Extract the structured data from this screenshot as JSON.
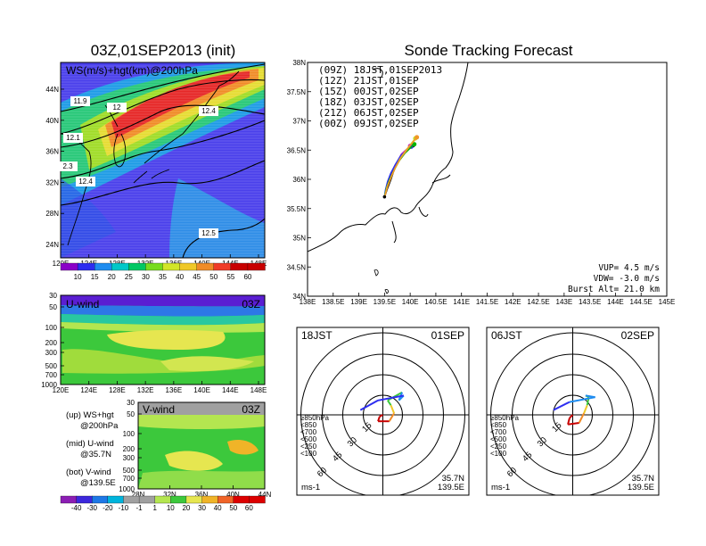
{
  "left_title": "03Z,01SEP2013 (init)",
  "right_title": "Sonde Tracking Forecast",
  "colors": {
    "c0": "#8b00c8",
    "c1": "#2d2df0",
    "c2": "#1e8cf0",
    "c3": "#00c8c8",
    "c4": "#00c864",
    "c5": "#78dc1e",
    "c6": "#d2e628",
    "c7": "#f0c828",
    "c8": "#f08c28",
    "c9": "#f03c28",
    "c10": "#c80000",
    "n0": "#8c1eb4",
    "n1": "#3c28dc",
    "n2": "#1e78e6",
    "n3": "#00b4dc",
    "n4": "#a0a0a0",
    "n5": "#b4e650",
    "n6": "#3cc83c",
    "n7": "#e6e650",
    "n8": "#f0b428",
    "n9": "#f06428",
    "n10": "#dc0000"
  },
  "chart_data": [
    {
      "type": "heatmap",
      "name_printed": "WS(m/s)+hgt(km)@200hPa",
      "x_ticks": [
        "120E",
        "124E",
        "128E",
        "132E",
        "136E",
        "140E",
        "144E",
        "148E"
      ],
      "y_ticks": [
        "24N",
        "28N",
        "32N",
        "36N",
        "40N",
        "44N"
      ],
      "contour_labels": [
        "11.9",
        "12",
        "12.4",
        "12.1",
        "2.3",
        "12.4",
        "12.5"
      ],
      "colorbar_ticks": [
        "10",
        "15",
        "20",
        "25",
        "30",
        "35",
        "40",
        "45",
        "50",
        "55",
        "60"
      ]
    },
    {
      "type": "heatmap",
      "name_printed": "U-wind",
      "time_label": "03Z",
      "x_ticks": [
        "120E",
        "124E",
        "128E",
        "132E",
        "136E",
        "140E",
        "144E",
        "148E"
      ],
      "y_ticks": [
        "30",
        "50",
        "100",
        "200",
        "300",
        "500",
        "700",
        "1000"
      ]
    },
    {
      "type": "heatmap",
      "name_printed": "V-wind",
      "time_label": "03Z",
      "x_ticks": [
        "28N",
        "32N",
        "36N",
        "40N",
        "44N"
      ],
      "y_ticks": [
        "30",
        "50",
        "100",
        "200",
        "300",
        "500",
        "700",
        "1000"
      ],
      "colorbar_ticks": [
        "-40",
        "-30",
        "-20",
        "-10",
        "-1",
        "1",
        "10",
        "20",
        "30",
        "40",
        "50",
        "60"
      ]
    },
    {
      "type": "line",
      "x_ticks": [
        "138E",
        "138.5E",
        "139E",
        "139.5E",
        "140E",
        "140.5E",
        "141E",
        "141.5E",
        "142E",
        "142.5E",
        "143E",
        "143.5E",
        "144E",
        "144.5E",
        "145E"
      ],
      "y_ticks": [
        "34N",
        "34.5N",
        "35N",
        "35.5N",
        "36N",
        "36.5N",
        "37N",
        "37.5N",
        "38N"
      ],
      "xlim": [
        138,
        145
      ],
      "ylim": [
        34,
        38
      ],
      "launch": {
        "lon": 139.5,
        "lat": 35.7
      },
      "series": [
        {
          "name": "(09Z)  18JST,01SEP2013",
          "color": "#000000",
          "track": [
            [
              139.51,
              35.72
            ],
            [
              139.56,
              35.85
            ],
            [
              139.62,
              35.99
            ],
            [
              139.68,
              36.14
            ],
            [
              139.76,
              36.3
            ],
            [
              139.86,
              36.45
            ],
            [
              140.05,
              36.58
            ]
          ]
        },
        {
          "name": "(12Z)  21JST,01SEP",
          "color": "#c800c8",
          "track": [
            [
              139.5,
              35.71
            ],
            [
              139.53,
              35.83
            ],
            [
              139.58,
              35.98
            ],
            [
              139.64,
              36.12
            ],
            [
              139.73,
              36.27
            ],
            [
              139.83,
              36.43
            ],
            [
              140.0,
              36.57
            ]
          ]
        },
        {
          "name": "(15Z)  00JST,02SEP",
          "color": "#2d2df0",
          "track": [
            [
              139.5,
              35.71
            ],
            [
              139.52,
              35.82
            ],
            [
              139.56,
              35.96
            ],
            [
              139.62,
              36.1
            ],
            [
              139.71,
              36.25
            ],
            [
              139.82,
              36.41
            ],
            [
              140.02,
              36.56
            ]
          ]
        },
        {
          "name": "(18Z)  03JST,02SEP",
          "color": "#00b400",
          "track": [
            [
              139.5,
              35.71
            ],
            [
              139.54,
              35.86
            ],
            [
              139.6,
              36.0
            ],
            [
              139.68,
              36.15
            ],
            [
              139.78,
              36.31
            ],
            [
              139.9,
              36.45
            ],
            [
              140.08,
              36.6
            ]
          ]
        },
        {
          "name": "(21Z)  06JST,02SEP",
          "color": "#c8dc28",
          "track": [
            [
              139.51,
              35.72
            ],
            [
              139.55,
              35.87
            ],
            [
              139.62,
              36.02
            ],
            [
              139.7,
              36.18
            ],
            [
              139.8,
              36.35
            ],
            [
              139.92,
              36.5
            ],
            [
              140.1,
              36.7
            ]
          ]
        },
        {
          "name": "(00Z)  09JST,02SEP",
          "color": "#f09628",
          "track": [
            [
              139.51,
              35.72
            ],
            [
              139.56,
              35.88
            ],
            [
              139.63,
              36.04
            ],
            [
              139.71,
              36.2
            ],
            [
              139.82,
              36.37
            ],
            [
              139.95,
              36.52
            ],
            [
              140.13,
              36.72
            ]
          ]
        }
      ],
      "annotations": [
        "VUP= 4.5 m/s",
        "VDW= -3.0 m/s",
        "Burst Alt= 21.0 km"
      ]
    },
    {
      "type": "line",
      "name_printed_left": "18JST",
      "name_printed_right": "01SEP",
      "ring_labels": [
        "15",
        "30",
        "45",
        "60"
      ],
      "units": "ms-1",
      "location": [
        "35.7N",
        "139.5E"
      ],
      "legend": [
        "≥850hPa",
        "<850",
        "<700",
        "<500",
        "<250",
        "<100"
      ],
      "hodograph": [
        [
          0,
          0
        ],
        [
          -2,
          -1
        ],
        [
          -3,
          -4
        ],
        [
          4,
          -4
        ],
        [
          7,
          1
        ],
        [
          5,
          6
        ],
        [
          3,
          9
        ],
        [
          12,
          14
        ],
        [
          10,
          9
        ],
        [
          13,
          12
        ],
        [
          -3,
          9
        ],
        [
          -14,
          3
        ]
      ]
    },
    {
      "type": "line",
      "name_printed_left": "06JST",
      "name_printed_right": "02SEP",
      "ring_labels": [
        "15",
        "30",
        "45",
        "60"
      ],
      "units": "ms-1",
      "location": [
        "35.7N",
        "139.5E"
      ],
      "legend": [
        "≥850hPa",
        "<850",
        "<700",
        "<500",
        "<250",
        "<100"
      ],
      "hodograph": [
        [
          0,
          0
        ],
        [
          -2,
          -2
        ],
        [
          -3,
          -6
        ],
        [
          4,
          -5
        ],
        [
          7,
          1
        ],
        [
          9,
          6
        ],
        [
          10,
          11
        ],
        [
          8,
          12
        ],
        [
          14,
          11
        ],
        [
          -2,
          8
        ],
        [
          -12,
          3
        ]
      ]
    }
  ],
  "side_notes": {
    "up_1": "(up) WS+hgt",
    "up_2": "@200hPa",
    "mid_1": "(mid) U-wind",
    "mid_2": "@35.7N",
    "bot_1": "(bot) V-wind",
    "bot_2": "@139.5E"
  }
}
